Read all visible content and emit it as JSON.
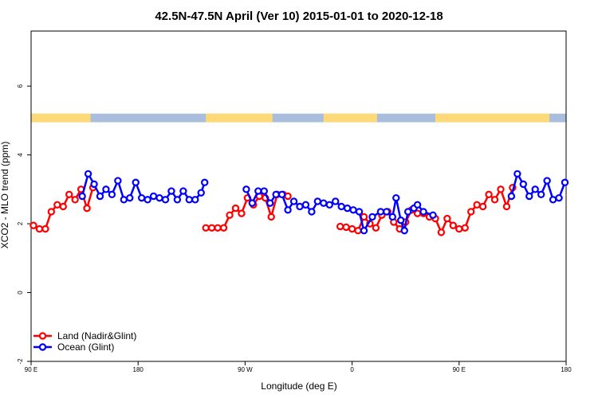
{
  "chart_data": {
    "type": "line",
    "title": "42.5N-47.5N April (Ver 10)   2015-01-01 to 2020-12-18",
    "xlabel": "Longitude (deg E)",
    "ylabel": "XCO2 - MLO trend (ppm)",
    "x_ticks": [
      {
        "value": 90,
        "label": "90 E"
      },
      {
        "value": 180,
        "label": "180"
      },
      {
        "value": 270,
        "label": "90 W"
      },
      {
        "value": 360,
        "label": "0"
      },
      {
        "value": 450,
        "label": "90 E"
      },
      {
        "value": 540,
        "label": "180"
      }
    ],
    "y_ticks": [
      -2,
      0,
      2,
      4,
      6
    ],
    "xlim": [
      90,
      540
    ],
    "ylim": [
      -2.0,
      7.6
    ],
    "grid": false,
    "legend_position": "bottom-left",
    "land_ocean_band": {
      "y_range": [
        4.95,
        5.2
      ],
      "land_color": "#ffd978",
      "ocean_color": "#a8bedc",
      "land_segments": [
        [
          90,
          140
        ],
        [
          237,
          293
        ],
        [
          336,
          381
        ],
        [
          430,
          526
        ]
      ]
    },
    "series": [
      {
        "name": "Land (Nadir&Glint)",
        "color": "#ff0000",
        "segments": [
          [
            [
              92,
              1.95
            ],
            [
              97,
              1.85
            ],
            [
              102,
              1.85
            ],
            [
              107,
              2.35
            ],
            [
              112,
              2.55
            ],
            [
              117,
              2.5
            ],
            [
              122,
              2.85
            ],
            [
              127,
              2.7
            ],
            [
              132,
              3.0
            ],
            [
              137,
              2.45
            ],
            [
              142,
              3.05
            ]
          ],
          [
            [
              237,
              1.88
            ],
            [
              242,
              1.88
            ],
            [
              247,
              1.88
            ],
            [
              252,
              1.88
            ],
            [
              257,
              2.25
            ],
            [
              262,
              2.45
            ],
            [
              267,
              2.3
            ],
            [
              272,
              2.75
            ],
            [
              277,
              2.55
            ],
            [
              282,
              2.8
            ],
            [
              287,
              2.75
            ],
            [
              292,
              2.2
            ],
            [
              297,
              2.85
            ],
            [
              302,
              2.85
            ],
            [
              306,
              2.8
            ]
          ],
          [
            [
              350,
              1.92
            ],
            [
              355,
              1.9
            ],
            [
              360,
              1.85
            ],
            [
              365,
              1.8
            ],
            [
              370,
              2.2
            ],
            [
              375,
              2.0
            ],
            [
              380,
              1.88
            ],
            [
              385,
              2.25
            ],
            [
              390,
              2.35
            ],
            [
              395,
              2.05
            ],
            [
              400,
              1.85
            ],
            [
              405,
              2.05
            ],
            [
              410,
              2.4
            ],
            [
              415,
              2.3
            ],
            [
              420,
              2.3
            ],
            [
              425,
              2.2
            ],
            [
              430,
              2.15
            ],
            [
              435,
              1.75
            ],
            [
              440,
              2.15
            ],
            [
              445,
              1.95
            ],
            [
              450,
              1.85
            ],
            [
              455,
              1.88
            ],
            [
              460,
              2.35
            ],
            [
              465,
              2.55
            ],
            [
              470,
              2.5
            ],
            [
              475,
              2.85
            ],
            [
              480,
              2.7
            ],
            [
              485,
              3.0
            ],
            [
              490,
              2.5
            ],
            [
              495,
              3.05
            ]
          ]
        ]
      },
      {
        "name": "Ocean (Glint)",
        "color": "#0000ff",
        "segments": [
          [
            [
              133,
              2.8
            ],
            [
              138,
              3.45
            ],
            [
              143,
              3.15
            ],
            [
              148,
              2.8
            ],
            [
              153,
              3.0
            ],
            [
              158,
              2.85
            ],
            [
              163,
              3.25
            ],
            [
              168,
              2.7
            ],
            [
              173,
              2.75
            ],
            [
              178,
              3.2
            ],
            [
              183,
              2.75
            ],
            [
              188,
              2.7
            ],
            [
              193,
              2.8
            ],
            [
              198,
              2.75
            ],
            [
              203,
              2.7
            ],
            [
              208,
              2.95
            ],
            [
              213,
              2.7
            ],
            [
              218,
              2.95
            ],
            [
              223,
              2.7
            ],
            [
              228,
              2.7
            ],
            [
              233,
              2.9
            ],
            [
              236,
              3.2
            ]
          ],
          [
            [
              271,
              3.0
            ],
            [
              276,
              2.6
            ],
            [
              281,
              2.95
            ],
            [
              286,
              2.95
            ],
            [
              291,
              2.6
            ],
            [
              296,
              2.85
            ],
            [
              301,
              2.85
            ],
            [
              306,
              2.4
            ],
            [
              311,
              2.65
            ],
            [
              316,
              2.5
            ],
            [
              321,
              2.55
            ],
            [
              326,
              2.35
            ],
            [
              331,
              2.65
            ],
            [
              336,
              2.6
            ],
            [
              341,
              2.55
            ],
            [
              346,
              2.65
            ],
            [
              351,
              2.5
            ],
            [
              356,
              2.45
            ],
            [
              361,
              2.4
            ],
            [
              366,
              2.35
            ],
            [
              370,
              1.8
            ],
            [
              377,
              2.2
            ],
            [
              384,
              2.35
            ],
            [
              389,
              2.35
            ],
            [
              394,
              2.2
            ],
            [
              397,
              2.75
            ],
            [
              401,
              2.1
            ],
            [
              404,
              1.8
            ],
            [
              407,
              2.35
            ],
            [
              412,
              2.45
            ],
            [
              415,
              2.55
            ],
            [
              420,
              2.35
            ],
            [
              428,
              2.25
            ]
          ],
          [
            [
              494,
              2.8
            ],
            [
              499,
              3.45
            ],
            [
              504,
              3.15
            ],
            [
              509,
              2.8
            ],
            [
              514,
              3.0
            ],
            [
              519,
              2.85
            ],
            [
              524,
              3.25
            ],
            [
              529,
              2.7
            ],
            [
              534,
              2.75
            ],
            [
              539,
              3.2
            ]
          ]
        ]
      }
    ]
  }
}
